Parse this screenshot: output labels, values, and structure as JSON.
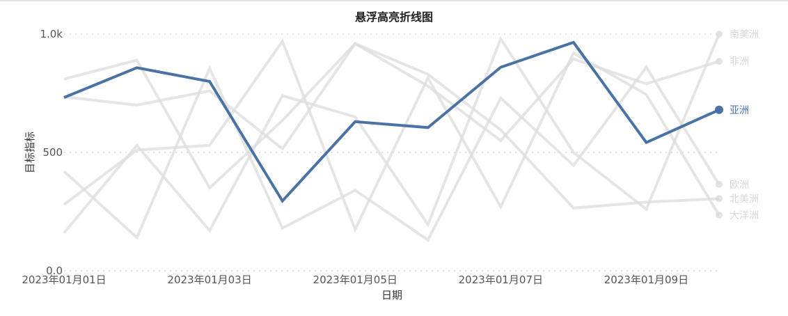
{
  "chart_data": {
    "type": "line",
    "title": "悬浮高亮折线图",
    "xlabel": "日期",
    "ylabel": "目标指标",
    "x": [
      "2023-01-01",
      "2023-01-02",
      "2023-01-03",
      "2023-01-04",
      "2023-01-05",
      "2023-01-06",
      "2023-01-07",
      "2023-01-08",
      "2023-01-09",
      "2023-01-10"
    ],
    "x_tick_labels": [
      "2023年01月01日",
      "2023年01月03日",
      "2023年01月05日",
      "2023年01月07日",
      "2023年01月09日"
    ],
    "x_tick_dates": [
      "2023-01-01",
      "2023-01-03",
      "2023-01-05",
      "2023-01-07",
      "2023-01-09"
    ],
    "y_tick_labels": [
      "0.0",
      "500",
      "1.0k"
    ],
    "y_tick_values": [
      0,
      500,
      1000
    ],
    "ylim": [
      0,
      1000
    ],
    "grid": "horizontal dotted",
    "legend": "right, inline labels at line ends",
    "highlighted_series": "亚洲",
    "highlight_color": "#4a72a5",
    "muted_color": "#dcdcdc",
    "series": [
      {
        "name": "亚洲",
        "values": [
          732,
          858,
          800,
          295,
          630,
          605,
          860,
          965,
          542,
          680
        ]
      },
      {
        "name": "南美洲",
        "values": [
          160,
          530,
          170,
          740,
          650,
          195,
          980,
          500,
          260,
          1000
        ]
      },
      {
        "name": "非洲",
        "values": [
          810,
          890,
          350,
          635,
          960,
          780,
          550,
          895,
          790,
          885
        ]
      },
      {
        "name": "欧洲",
        "values": [
          420,
          140,
          855,
          180,
          340,
          130,
          730,
          445,
          860,
          365
        ]
      },
      {
        "name": "北美洲",
        "values": [
          735,
          700,
          760,
          515,
          960,
          830,
          595,
          265,
          290,
          305
        ]
      },
      {
        "name": "大洋洲",
        "values": [
          280,
          510,
          530,
          970,
          175,
          815,
          270,
          920,
          745,
          235
        ]
      }
    ]
  }
}
